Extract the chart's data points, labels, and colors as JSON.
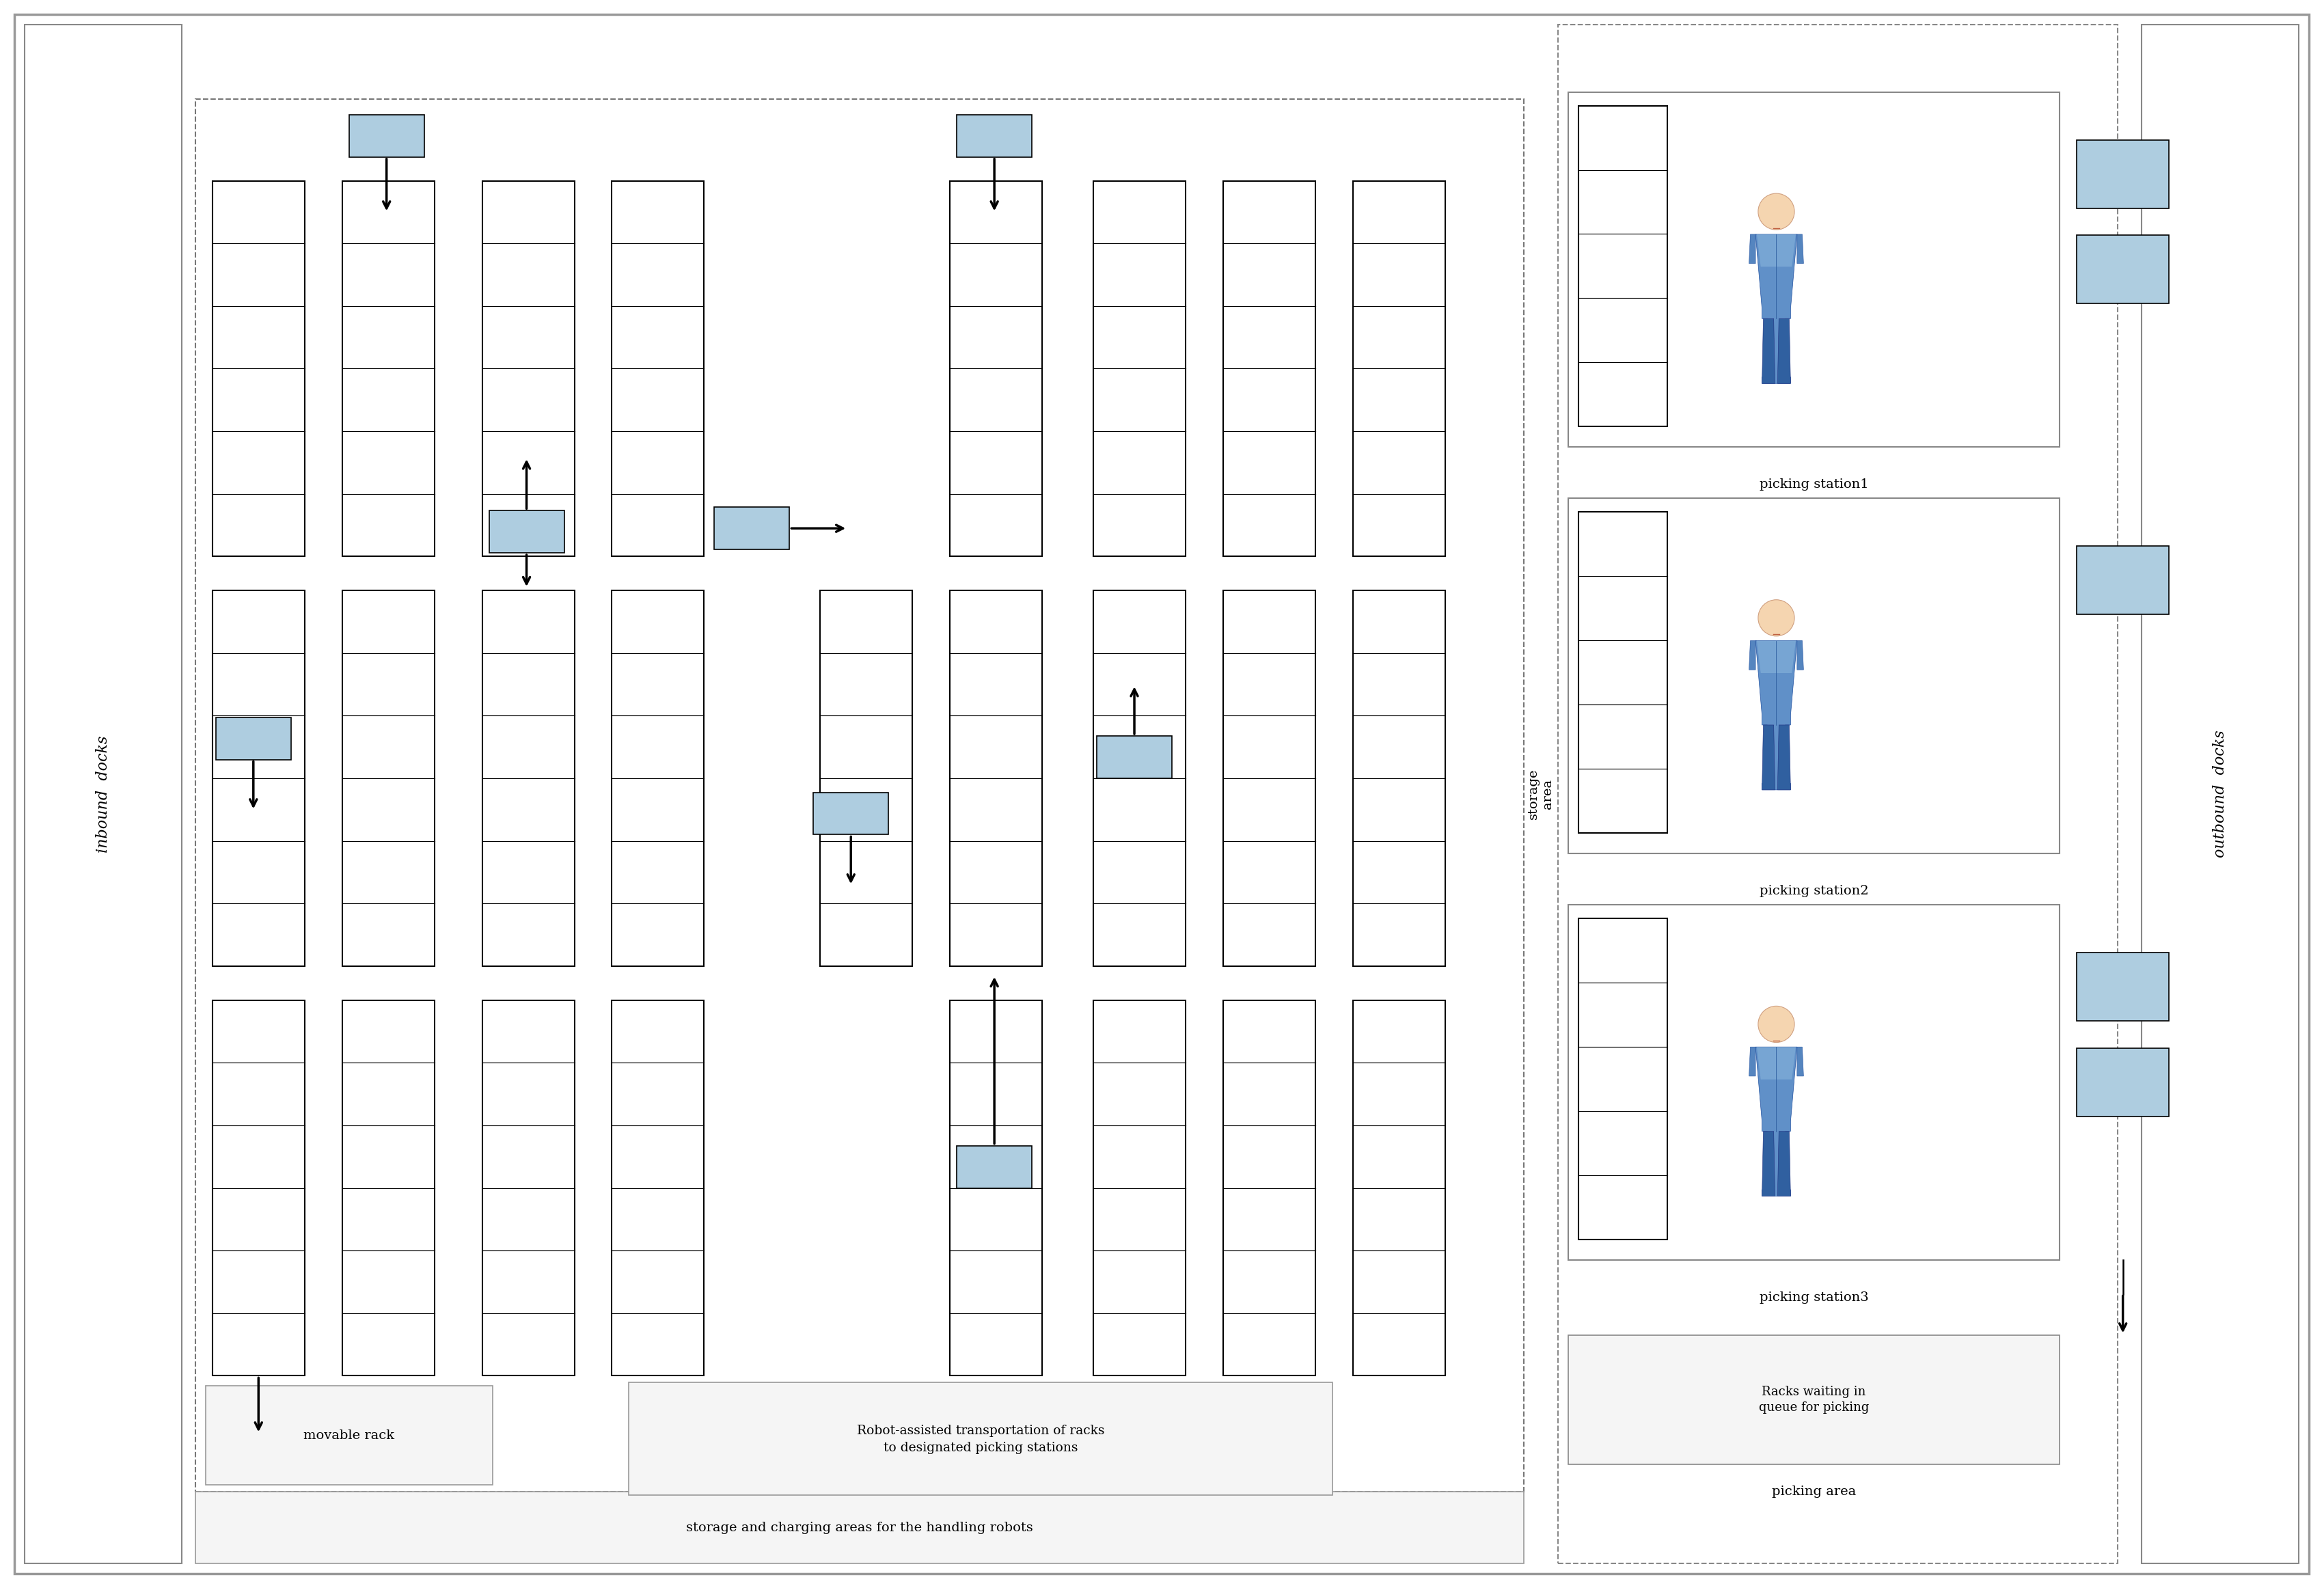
{
  "fig_width": 34.01,
  "fig_height": 23.24,
  "bg_color": "#ffffff",
  "rack_fill": "#ffffff",
  "rack_edge": "#000000",
  "robot_fill": "#aecde0",
  "dashed_color": "#777777",
  "border_color": "#aaaaaa",
  "storage_area_label": "storage\narea",
  "inbound_label": "inbound  docks",
  "outbound_label": "outbound  docks",
  "movable_rack_label": "movable rack",
  "transport_label": "Robot-assisted transportation of racks\nto designated picking stations",
  "storage_charging_label": "storage and charging areas for the handling robots",
  "picking_station_labels": [
    "picking station1",
    "picking station2",
    "picking station3"
  ],
  "queue_label": "Racks waiting in\nqueue for picking",
  "picking_area_label": "picking area",
  "head_color": "#f5d5b0",
  "body_color_top": "#7baad4",
  "body_color_bot": "#4070b0",
  "arrow_lw": 2.5
}
